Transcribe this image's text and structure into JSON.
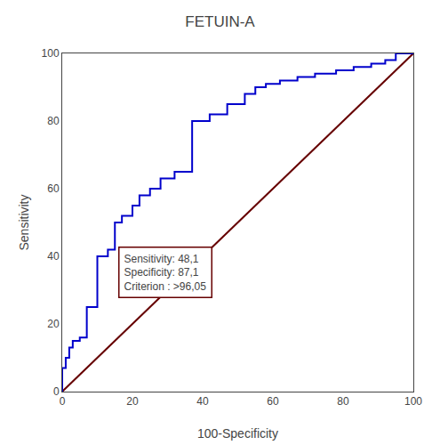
{
  "chart_data": {
    "type": "line",
    "title": "FETUIN-A",
    "xlabel": "100-Specificity",
    "ylabel": "Sensitivity",
    "xlim": [
      0,
      100
    ],
    "ylim": [
      0,
      100
    ],
    "xticks": [
      0,
      20,
      40,
      60,
      80,
      100
    ],
    "yticks": [
      0,
      20,
      40,
      60,
      80,
      100
    ],
    "grid": false,
    "annotations": [
      "Sensitivity: 48,1\nSpecificity: 87,1\nCriterion : >96,05"
    ],
    "series": [
      {
        "color": "#660000",
        "x": [
          0,
          100
        ],
        "values": [
          0,
          100
        ]
      },
      {
        "color": "#0000CC",
        "x": [
          0,
          0,
          1,
          1,
          2,
          2,
          3,
          3,
          5,
          5,
          7,
          7,
          10,
          10,
          13,
          13,
          15,
          15,
          17,
          17,
          20,
          20,
          22,
          22,
          25,
          25,
          28,
          28,
          32,
          32,
          37,
          37,
          42,
          42,
          47,
          47,
          52,
          52,
          55,
          55,
          58,
          58,
          62,
          62,
          67,
          67,
          72,
          72,
          78,
          78,
          83,
          83,
          88,
          88,
          92,
          92,
          95,
          95,
          100
        ],
        "values": [
          0,
          7,
          7,
          10,
          10,
          13,
          13,
          15,
          15,
          16,
          16,
          25,
          25,
          40,
          40,
          42,
          42,
          50,
          50,
          52,
          52,
          55,
          55,
          58,
          58,
          60,
          60,
          63,
          63,
          65,
          65,
          80,
          80,
          82,
          82,
          85,
          85,
          88,
          88,
          90,
          90,
          91,
          91,
          92,
          92,
          93,
          93,
          94,
          94,
          95,
          95,
          96,
          96,
          97,
          97,
          98,
          98,
          100,
          100
        ]
      }
    ]
  }
}
